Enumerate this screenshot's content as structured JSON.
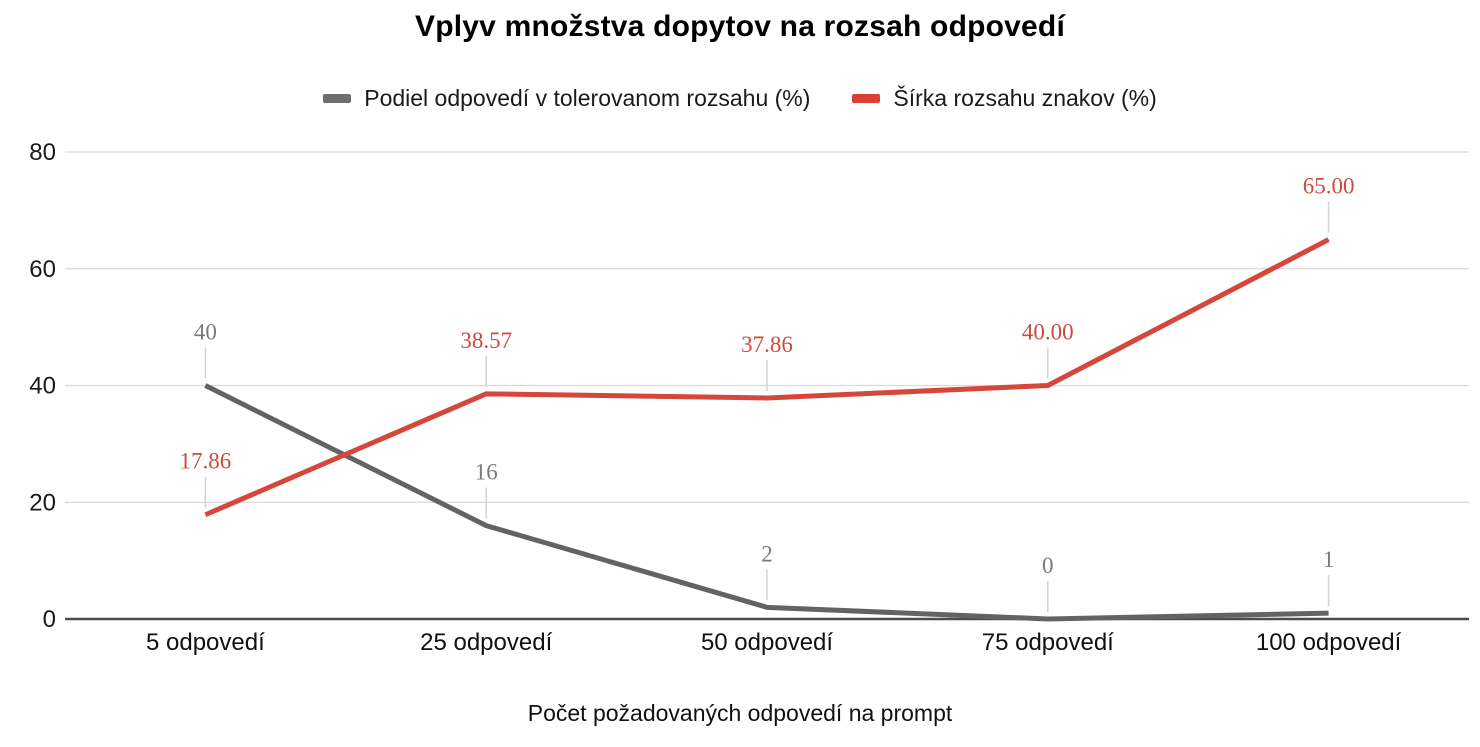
{
  "title": "Vplyv množstva dopytov na rozsah odpovedí",
  "legend": {
    "items": [
      {
        "label": "Podiel odpovedí v tolerovanom rozsahu (%)",
        "color": "#6e6e6e"
      },
      {
        "label": "Šírka rozsahu znakov (%)",
        "color": "#da4134"
      }
    ]
  },
  "x_axis_title": "Počet požadovaných odpovedí na prompt",
  "chart_data": {
    "type": "line",
    "title": "Vplyv množstva dopytov na rozsah odpovedí",
    "xlabel": "Počet požadovaných odpovedí na prompt",
    "ylabel": "",
    "categories": [
      "5 odpovedí",
      "25 odpovedí",
      "50 odpovedí",
      "75 odpovedí",
      "100 odpovedí"
    ],
    "series": [
      {
        "name": "Podiel odpovedí v tolerovanom rozsahu (%)",
        "values": [
          40,
          16,
          2,
          0,
          1
        ],
        "point_labels": [
          "40",
          "16",
          "2",
          "0",
          "1"
        ],
        "color": "#636363",
        "label_color": "#7a7a7a"
      },
      {
        "name": "Šírka rozsahu znakov (%)",
        "values": [
          17.86,
          38.57,
          37.86,
          40.0,
          65.0
        ],
        "point_labels": [
          "17.86",
          "38.57",
          "37.86",
          "40.00",
          "65.00"
        ],
        "color": "#d6473b",
        "label_color": "#cb4b40"
      }
    ],
    "y_ticks": [
      0,
      20,
      40,
      60,
      80
    ],
    "ylim": [
      0,
      80
    ],
    "grid": "horizontal",
    "legend_position": "top",
    "colors": {
      "gridline": "#d9d9d9",
      "baseline": "#4c4c4c",
      "annotation_stem": "#d2d2d2",
      "tick_label": "#1a1a1a"
    }
  }
}
